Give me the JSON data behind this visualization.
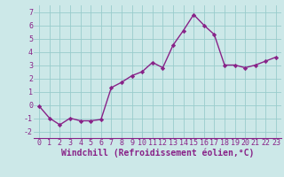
{
  "x": [
    0,
    1,
    2,
    3,
    4,
    5,
    6,
    7,
    8,
    9,
    10,
    11,
    12,
    13,
    14,
    15,
    16,
    17,
    18,
    19,
    20,
    21,
    22,
    23
  ],
  "y": [
    -0.1,
    -1.0,
    -1.5,
    -1.0,
    -1.2,
    -1.2,
    -1.1,
    1.3,
    1.7,
    2.2,
    2.5,
    3.2,
    2.8,
    4.5,
    5.6,
    6.8,
    6.0,
    5.3,
    3.0,
    3.0,
    2.8,
    3.0,
    3.3,
    3.6
  ],
  "line_color": "#882288",
  "marker": "D",
  "marker_size": 2.2,
  "bg_color": "#cce8e8",
  "grid_color": "#99cccc",
  "xlabel": "Windchill (Refroidissement éolien,°C)",
  "ylim": [
    -2.5,
    7.5
  ],
  "xlim": [
    -0.5,
    23.5
  ],
  "yticks": [
    -2,
    -1,
    0,
    1,
    2,
    3,
    4,
    5,
    6,
    7
  ],
  "xticks": [
    0,
    1,
    2,
    3,
    4,
    5,
    6,
    7,
    8,
    9,
    10,
    11,
    12,
    13,
    14,
    15,
    16,
    17,
    18,
    19,
    20,
    21,
    22,
    23
  ],
  "tick_label_fontsize": 6.0,
  "xlabel_fontsize": 7.0,
  "line_width": 1.0
}
